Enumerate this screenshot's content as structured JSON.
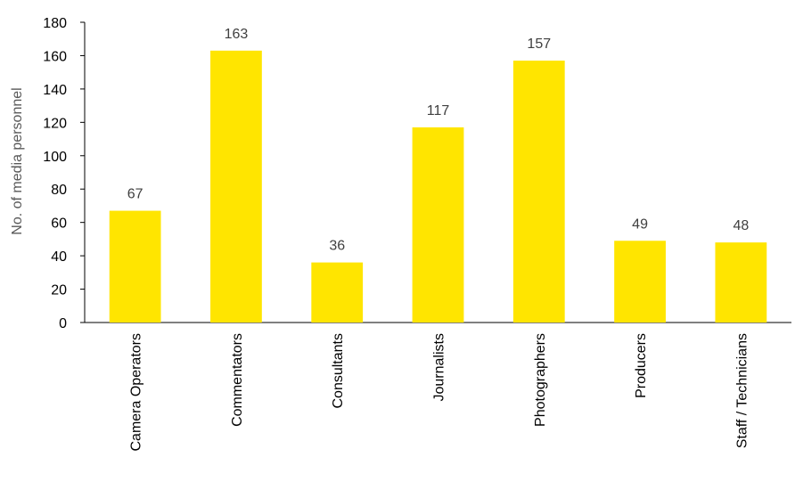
{
  "chart_data": {
    "type": "bar",
    "categories": [
      "Camera Operators",
      "Commentators",
      "Consultants",
      "Journalists",
      "Photographers",
      "Producers",
      "Staff / Technicians"
    ],
    "values": [
      67,
      163,
      36,
      117,
      157,
      49,
      48
    ],
    "data_labels": [
      "67",
      "163",
      "36",
      "117",
      "157",
      "49",
      "48"
    ],
    "ylabel": "No. of media personnel",
    "xlabel": "",
    "ylim": [
      0,
      180
    ],
    "yticks": [
      0,
      20,
      40,
      60,
      80,
      100,
      120,
      140,
      160,
      180
    ],
    "ytick_labels": [
      "0",
      "20",
      "40",
      "60",
      "80",
      "100",
      "120",
      "140",
      "160",
      "180"
    ],
    "bar_color": "#FFE500",
    "grid": false,
    "legend": "none"
  }
}
